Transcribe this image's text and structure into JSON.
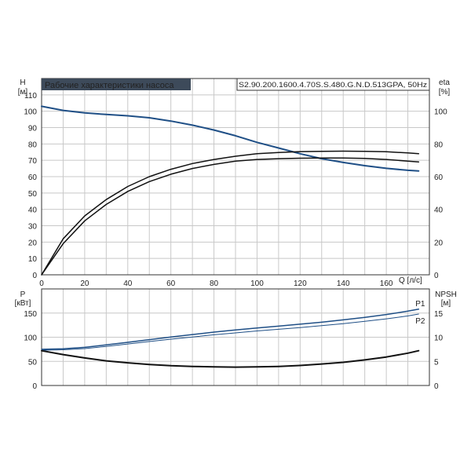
{
  "colors": {
    "background": "#ffffff",
    "grid": "#c8c8c8",
    "axis": "#333333",
    "title_bg": "#3d4a5a",
    "title_text": "#ffffff",
    "curve_blue": "#1f4f86",
    "curve_black": "#111111"
  },
  "chart_data": [
    {
      "type": "line",
      "id": "upper",
      "title": "Рабочие характеристики насоса",
      "model": "S2.90.200.1600.4.70S.S.480.G.N.D.513GPA, 50Hz",
      "xlabel": "Q [л/с]",
      "ylabel_left": [
        "H",
        "[м]"
      ],
      "ylabel_right": [
        "eta",
        "[%]"
      ],
      "xlim": [
        0,
        180
      ],
      "xticks": [
        0,
        20,
        40,
        60,
        80,
        100,
        120,
        140,
        160
      ],
      "ylim_left": [
        0,
        120
      ],
      "yticks_left": [
        0,
        10,
        20,
        30,
        40,
        50,
        60,
        70,
        80,
        90,
        100,
        110
      ],
      "ylim_right": [
        0,
        120
      ],
      "yticks_right": [
        0,
        20,
        40,
        60,
        80,
        100
      ],
      "grid": true,
      "series": [
        {
          "axis": "left",
          "color": "#1f4f86",
          "width": 2,
          "x": [
            0,
            10,
            20,
            30,
            40,
            50,
            60,
            70,
            80,
            90,
            100,
            110,
            120,
            130,
            140,
            150,
            160,
            170,
            175
          ],
          "y": [
            103,
            100.5,
            99,
            98,
            97.2,
            96,
            94,
            91.5,
            88.5,
            85,
            81,
            77.5,
            74,
            71,
            68.7,
            66.7,
            65.1,
            63.9,
            63.5
          ]
        },
        {
          "axis": "right",
          "color": "#111111",
          "width": 1.5,
          "x": [
            0,
            10,
            20,
            30,
            40,
            50,
            60,
            70,
            80,
            90,
            100,
            110,
            120,
            130,
            140,
            150,
            160,
            170,
            175
          ],
          "y": [
            0,
            22,
            36,
            46,
            54,
            60,
            64.5,
            68,
            70.5,
            72.5,
            74,
            74.8,
            75.3,
            75.5,
            75.6,
            75.5,
            75.2,
            74.5,
            74
          ]
        },
        {
          "axis": "right",
          "color": "#111111",
          "width": 1.5,
          "x": [
            0,
            10,
            20,
            30,
            40,
            50,
            60,
            70,
            80,
            90,
            100,
            110,
            120,
            130,
            140,
            150,
            160,
            170,
            175
          ],
          "y": [
            0,
            19,
            33,
            43,
            51,
            57,
            61.5,
            65,
            67.5,
            69.5,
            70.5,
            71,
            71.3,
            71.4,
            71.4,
            71.2,
            70.5,
            69.5,
            69
          ]
        }
      ]
    },
    {
      "type": "line",
      "id": "lower",
      "ylabel_left": [
        "P",
        "[кВт]"
      ],
      "ylabel_right": [
        "NPSH",
        "[м]"
      ],
      "xlim": [
        0,
        180
      ],
      "ylim_left": [
        0,
        200
      ],
      "yticks_left": [
        0,
        50,
        100,
        150
      ],
      "ylim_right": [
        0,
        20
      ],
      "yticks_right": [
        0,
        5,
        10,
        15
      ],
      "grid": true,
      "series": [
        {
          "name": "P1",
          "axis": "left",
          "color": "#1f4f86",
          "width": 1.5,
          "x": [
            0,
            10,
            20,
            30,
            40,
            50,
            60,
            70,
            80,
            90,
            100,
            110,
            120,
            130,
            140,
            150,
            160,
            170,
            175
          ],
          "y": [
            75,
            76,
            79,
            84,
            89.5,
            95,
            100.5,
            105.5,
            110.5,
            115,
            119,
            123,
            127,
            131,
            136,
            141,
            147,
            154,
            158
          ]
        },
        {
          "name": "P2",
          "axis": "left",
          "color": "#1f4f86",
          "width": 1,
          "x": [
            0,
            10,
            20,
            30,
            40,
            50,
            60,
            70,
            80,
            90,
            100,
            110,
            120,
            130,
            140,
            150,
            160,
            170,
            175
          ],
          "y": [
            73,
            74,
            76.5,
            81,
            86,
            91,
            96,
            100.5,
            105,
            109,
            113,
            116.5,
            120,
            124,
            128,
            133,
            138,
            144,
            148
          ]
        },
        {
          "axis": "right",
          "color": "#111111",
          "width": 2,
          "x": [
            0,
            10,
            20,
            30,
            40,
            50,
            60,
            70,
            80,
            90,
            100,
            110,
            120,
            130,
            140,
            150,
            160,
            170,
            175
          ],
          "y": [
            7.2,
            6.4,
            5.7,
            5.1,
            4.7,
            4.35,
            4.1,
            3.95,
            3.85,
            3.8,
            3.85,
            3.95,
            4.15,
            4.45,
            4.8,
            5.3,
            5.9,
            6.7,
            7.2
          ]
        }
      ]
    }
  ]
}
